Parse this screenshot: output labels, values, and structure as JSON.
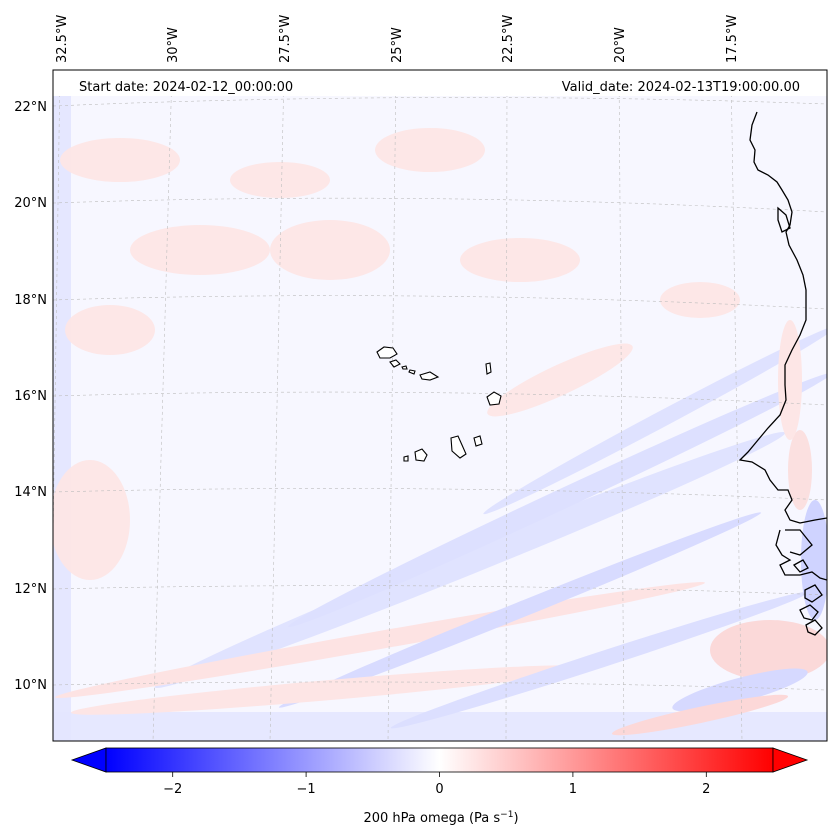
{
  "header": {
    "start_date": "Start date: 2024-02-12_00:00:00",
    "valid_date": "Valid_date: 2024-02-13T19:00:00.00"
  },
  "axes": {
    "lon_labels": [
      "32.5°W",
      "30°W",
      "27.5°W",
      "25°W",
      "22.5°W",
      "20°W",
      "17.5°W"
    ],
    "lat_labels": [
      "22°N",
      "20°N",
      "18°N",
      "16°N",
      "14°N",
      "12°N",
      "10°N"
    ]
  },
  "colorbar": {
    "label": "200 hPa omega (Pa s",
    "label_superscript": "−1",
    "label_suffix": ")",
    "ticks": [
      "−2",
      "−1",
      "0",
      "1",
      "2"
    ],
    "range": [
      -2.5,
      2.5
    ],
    "colormap": "bwr",
    "neg_color": "#0000ff",
    "zero_color": "#ffffff",
    "pos_color": "#ff0000"
  },
  "colors": {
    "background_field": "#f6f6ff",
    "weak_positive": "#fde8e8",
    "weak_negative": "#e4e6ff",
    "coastline": "#000000"
  }
}
